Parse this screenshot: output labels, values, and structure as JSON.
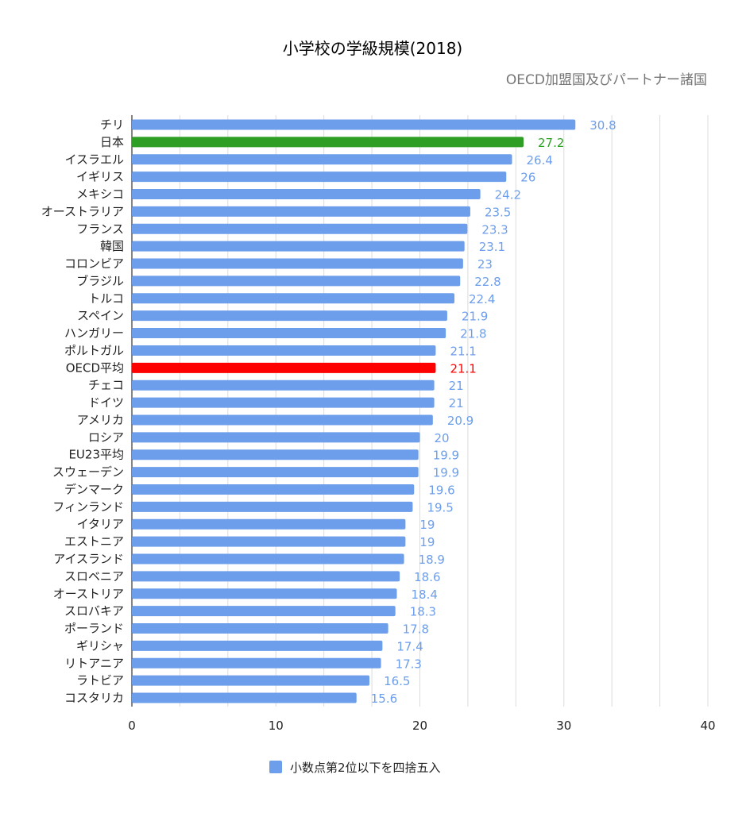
{
  "chart_data": {
    "type": "bar",
    "orientation": "horizontal",
    "title": "小学校の学級規模(2018)",
    "subtitle": "OECD加盟国及びパートナー諸国",
    "categories": [
      "チリ",
      "日本",
      "イスラエル",
      "イギリス",
      "メキシコ",
      "オーストラリア",
      "フランス",
      "韓国",
      "コロンビア",
      "ブラジル",
      "トルコ",
      "スペイン",
      "ハンガリー",
      "ポルトガル",
      "OECD平均",
      "チェコ",
      "ドイツ",
      "アメリカ",
      "ロシア",
      "EU23平均",
      "スウェーデン",
      "デンマーク",
      "フィンランド",
      "イタリア",
      "エストニア",
      "アイスランド",
      "スロベニア",
      "オーストリア",
      "スロバキア",
      "ポーランド",
      "ギリシャ",
      "リトアニア",
      "ラトビア",
      "コスタリカ"
    ],
    "value_labels": [
      "30.8",
      "27.2",
      "26.4",
      "26",
      "24.2",
      "23.5",
      "23.3",
      "23.1",
      "23",
      "22.8",
      "22.4",
      "21.9",
      "21.8",
      "21.1",
      "21.1",
      "21",
      "21",
      "20.9",
      "20",
      "19.9",
      "19.9",
      "19.6",
      "19.5",
      "19",
      "19",
      "18.9",
      "18.6",
      "18.4",
      "18.3",
      "17.8",
      "17.4",
      "17.3",
      "16.5",
      "15.6"
    ],
    "values": [
      30.8,
      27.2,
      26.4,
      26,
      24.2,
      23.5,
      23.3,
      23.1,
      23,
      22.8,
      22.4,
      21.9,
      21.8,
      21.1,
      21.1,
      21,
      21,
      20.9,
      20,
      19.9,
      19.9,
      19.6,
      19.5,
      19,
      19,
      18.9,
      18.6,
      18.4,
      18.3,
      17.8,
      17.4,
      17.3,
      16.5,
      15.6
    ],
    "highlights": {
      "日本": "#2f9e25",
      "OECD平均": "#ff0000"
    },
    "series": [
      {
        "name": "小数点第2位以下を四捨五入",
        "color": "#6d9eeb"
      }
    ],
    "xlim": [
      0,
      40
    ],
    "x_ticks": [
      "0",
      "10",
      "20",
      "30",
      "40"
    ],
    "grid": true,
    "legend_position": "bottom"
  }
}
